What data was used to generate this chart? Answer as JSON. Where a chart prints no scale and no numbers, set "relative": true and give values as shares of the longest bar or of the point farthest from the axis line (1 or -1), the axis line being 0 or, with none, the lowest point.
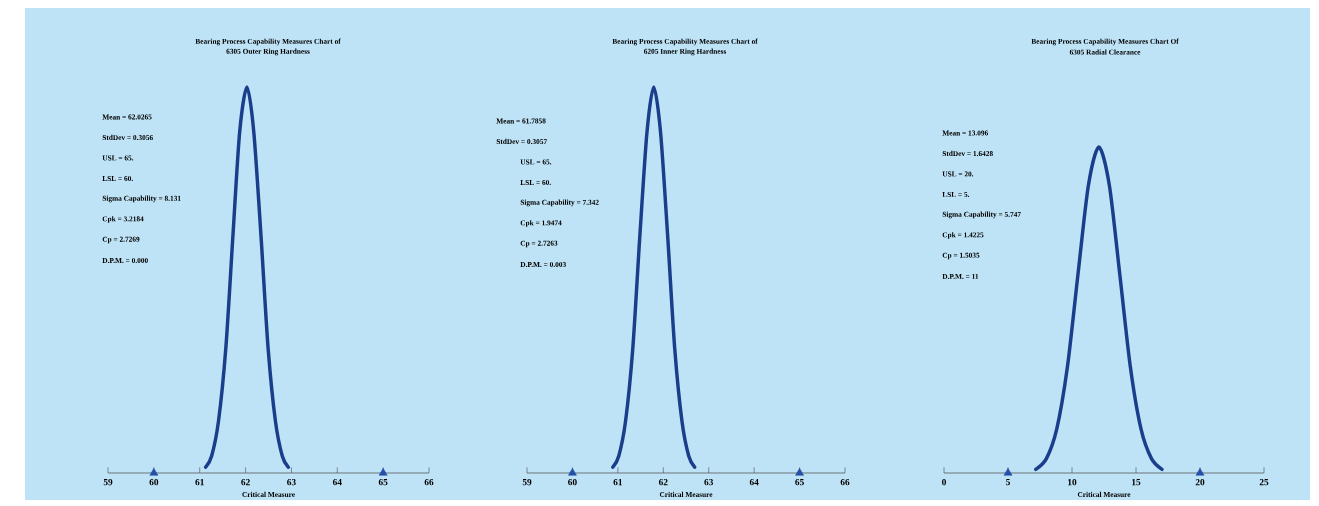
{
  "chart_data": [
    {
      "type": "line",
      "relative": true,
      "title": "Bearing Process Capability Measures Chart of",
      "subtitle": "6305 Outer Ring Hardness",
      "xlabel": "Critical Measure",
      "xlim": [
        59,
        66
      ],
      "xticks": [
        59,
        60,
        61,
        62,
        63,
        64,
        65,
        66
      ],
      "tick_labels": "x",
      "annotations": [
        "Mean = 62.0265",
        "StdDev = 0.3056",
        "USL =  65.",
        "LSL =  60.",
        "Sigma Capability = 8.131",
        "Cpk = 3.2184",
        "Cp = 2.7269",
        "D.P.M. = 0.000"
      ],
      "series": [
        {
          "color": "#1a3e8c",
          "x": [
            61.13,
            61.26,
            61.41,
            61.57,
            61.72,
            61.87,
            62.03,
            62.18,
            62.34,
            62.49,
            62.65,
            62.8,
            62.93
          ],
          "values": [
            0.015,
            0.044,
            0.135,
            0.325,
            0.607,
            0.882,
            1,
            0.882,
            0.607,
            0.325,
            0.135,
            0.044,
            0.015
          ]
        },
        {
          "type": "scatter",
          "marker": "triangle",
          "color": "#2450a8",
          "x": [
            60,
            65
          ],
          "values": [
            0,
            0
          ]
        }
      ]
    },
    {
      "type": "line",
      "relative": true,
      "title": "Bearing Process Capability Measures Chart of",
      "subtitle": "6205 Inner Ring Hardness",
      "xlabel": "Critical Measure",
      "xlim": [
        59,
        66
      ],
      "xticks": [
        59,
        60,
        61,
        62,
        63,
        64,
        65,
        66
      ],
      "tick_labels": "x",
      "annotations": [
        "Mean = 61.7858",
        "StdDev = 0.3057",
        "USL =  65.",
        "LSL =  60.",
        "Sigma Capability = 7.342",
        "Cpk = 1.9474",
        "Cp = 2.7263",
        "D.P.M. = 0.003"
      ],
      "series": [
        {
          "color": "#1a3e8c",
          "x": [
            60.89,
            61.02,
            61.17,
            61.33,
            61.48,
            61.64,
            61.79,
            61.94,
            62.1,
            62.25,
            62.41,
            62.56,
            62.69
          ],
          "values": [
            0.015,
            0.044,
            0.135,
            0.325,
            0.607,
            0.882,
            1,
            0.882,
            0.607,
            0.325,
            0.135,
            0.044,
            0.015
          ]
        },
        {
          "type": "scatter",
          "marker": "triangle",
          "color": "#2450a8",
          "x": [
            60,
            65
          ],
          "values": [
            0,
            0
          ]
        }
      ]
    },
    {
      "type": "line",
      "relative": true,
      "title": "Bearing Process Capability Measures Chart  Of",
      "subtitle": "6305 Radial Clearance",
      "xlabel": "Critical Measure",
      "xlim": [
        0,
        25
      ],
      "xticks": [
        0,
        5,
        10,
        15,
        20,
        25
      ],
      "tick_labels": "x",
      "annotations": [
        "Mean = 13.096",
        "StdDev = 1.6428",
        "USL =  20.",
        "LSL =  5.",
        "Sigma Capability = 5.747",
        "Cpk = 1.4225",
        "Cp = 1.5035",
        "D.P.M. = 11"
      ],
      "series": [
        {
          "color": "#1a3e8c",
          "x": [
            7.17,
            8.0,
            8.81,
            9.64,
            10.46,
            11.28,
            12.1,
            12.92,
            13.74,
            14.56,
            15.39,
            16.21,
            17.03
          ],
          "values": [
            0.011,
            0.044,
            0.135,
            0.325,
            0.607,
            0.882,
            1,
            0.882,
            0.607,
            0.325,
            0.135,
            0.044,
            0.011
          ]
        },
        {
          "type": "scatter",
          "marker": "triangle",
          "color": "#2450a8",
          "x": [
            5,
            20
          ],
          "values": [
            0,
            0
          ]
        }
      ]
    }
  ]
}
